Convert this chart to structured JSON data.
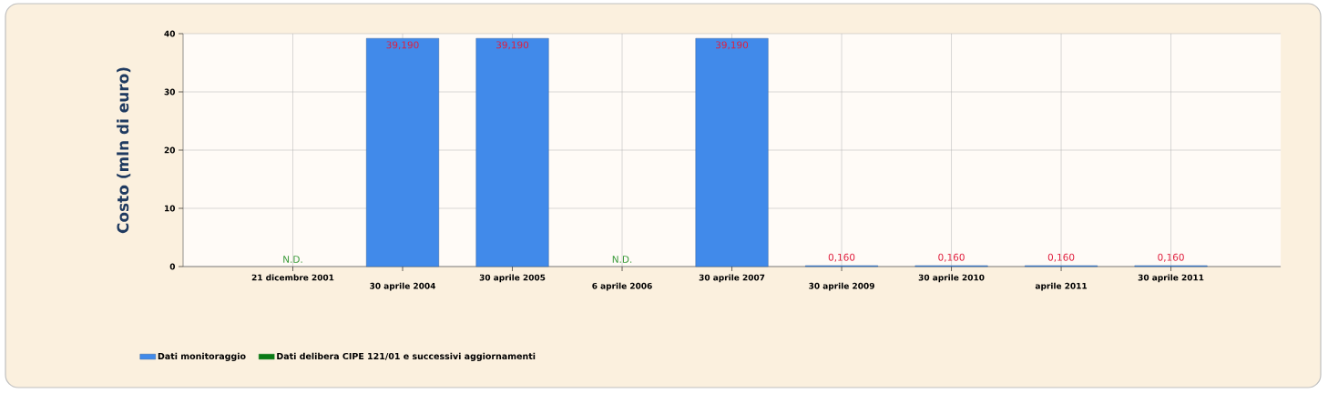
{
  "chart_data": {
    "type": "bar",
    "ylabel": "Costo (mln di euro)",
    "categories": [
      "21 dicembre 2001",
      "30 aprile 2004",
      "30 aprile 2005",
      "6 aprile 2006",
      "30 aprile 2007",
      "30 aprile 2009",
      "30 aprile 2010",
      "aprile 2011",
      "30 aprile 2011"
    ],
    "series": [
      {
        "name": "Dati monitoraggio",
        "color": "#418aea",
        "values": [
          null,
          39.19,
          39.19,
          null,
          39.19,
          0.16,
          0.16,
          0.16,
          0.16
        ],
        "value_labels": [
          null,
          "39,190",
          "39,190",
          null,
          "39,190",
          "0,160",
          "0,160",
          "0,160",
          "0,160"
        ]
      },
      {
        "name": "Dati delibera CIPE 121/01 e successivi aggiornamenti",
        "color": "#0a7a16",
        "values": [
          null,
          null,
          null,
          null,
          null,
          null,
          null,
          null,
          null
        ],
        "value_labels": [
          "N.D.",
          null,
          null,
          "N.D.",
          null,
          null,
          null,
          null,
          null
        ]
      }
    ],
    "ylim": [
      0,
      40
    ],
    "yticks": [
      0,
      10,
      20,
      30,
      40
    ],
    "grid": true,
    "legend": "bottom left"
  }
}
